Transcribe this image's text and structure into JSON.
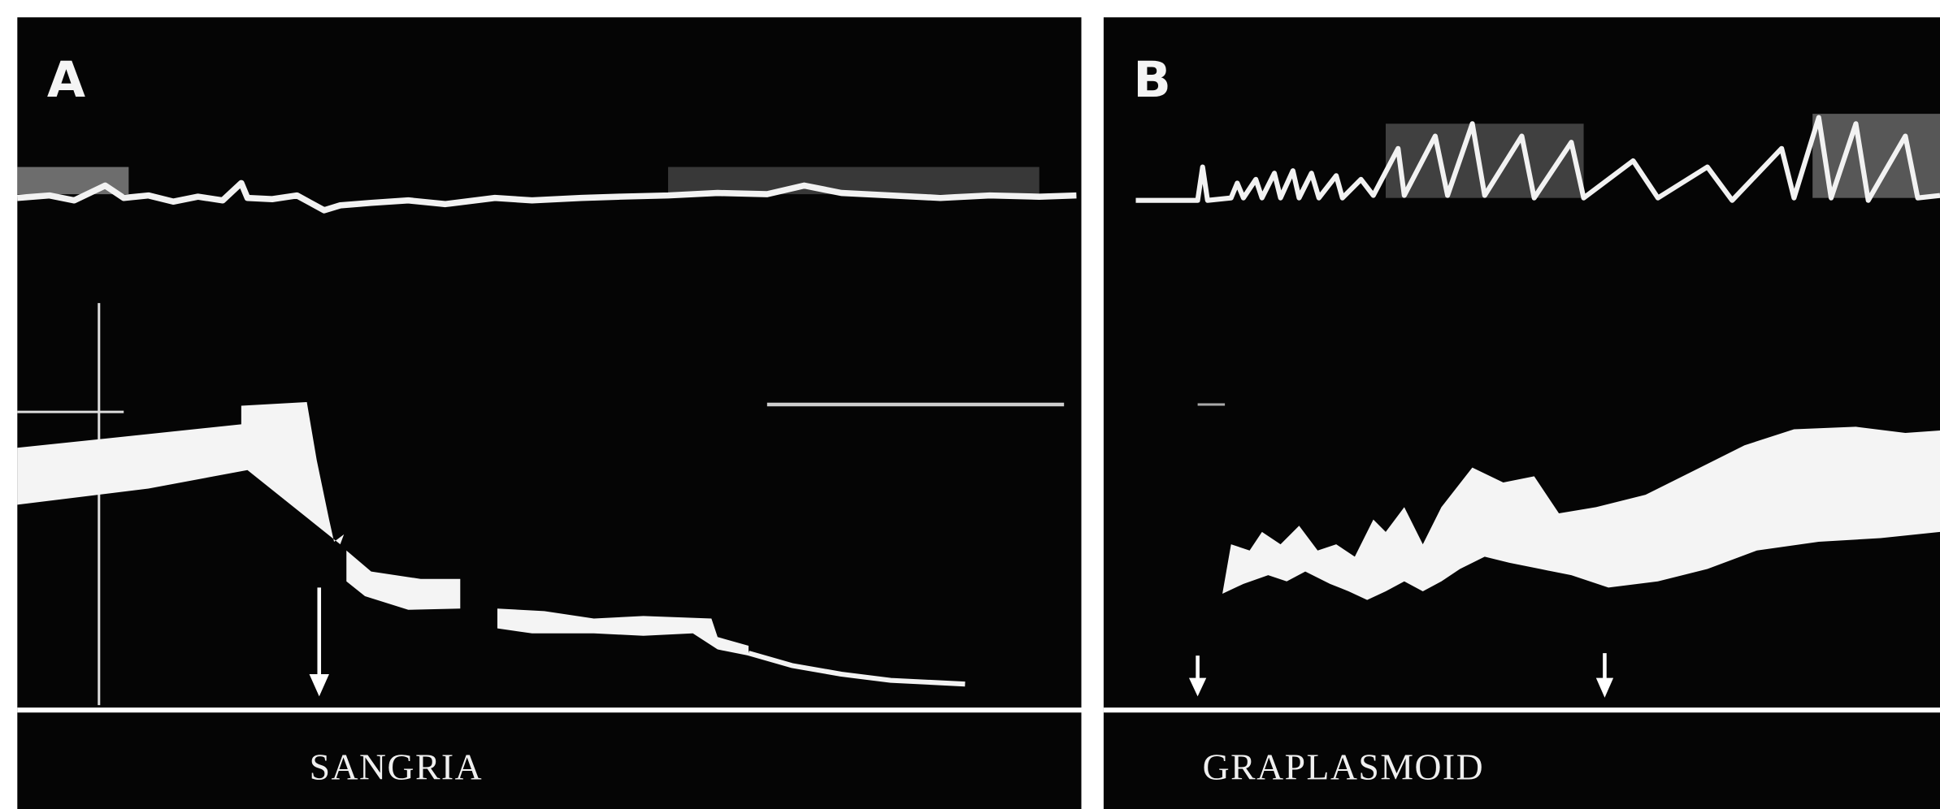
{
  "panels": [
    {
      "label": "A",
      "caption": "SANGRIA"
    },
    {
      "label": "B",
      "caption": "GRAPLASMOID"
    }
  ]
}
